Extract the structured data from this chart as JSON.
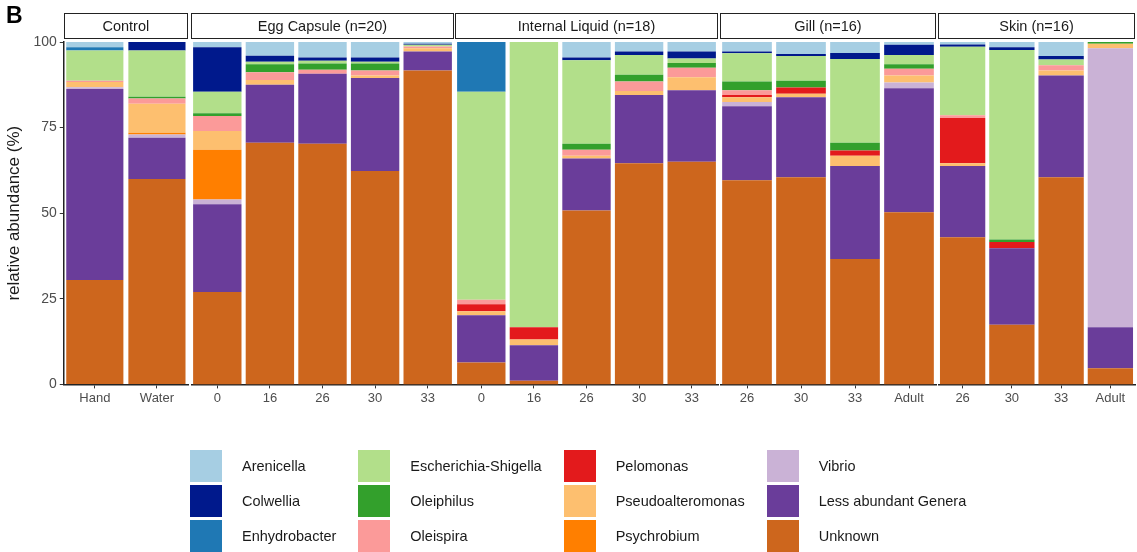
{
  "chart_data": [
    {
      "type": "bar",
      "title": "Control",
      "ylabel": "relative abundance (%)",
      "annotations": [
        "B"
      ],
      "stacked": true,
      "grid": false,
      "legend": "bottom",
      "ylim": [
        0,
        100
      ],
      "yticks": [
        0,
        25,
        50,
        75,
        100
      ],
      "categories": [
        "Hand",
        "Water"
      ],
      "series": [
        {
          "name": "Unknown",
          "color": "#cd661d",
          "values": [
            30.5,
            60.0
          ]
        },
        {
          "name": "Less abundant Genera",
          "color": "#6a3d9a",
          "values": [
            55.8,
            12.0
          ]
        },
        {
          "name": "Vibrio",
          "color": "#cab2d6",
          "values": [
            0.5,
            1.0
          ]
        },
        {
          "name": "Psychrobium",
          "color": "#ff7f00",
          "values": [
            0,
            0.5
          ]
        },
        {
          "name": "Pseudoalteromonas",
          "color": "#fdbf6f",
          "values": [
            1.5,
            8.5
          ]
        },
        {
          "name": "Pelomonas",
          "color": "#e31a1c",
          "values": [
            0,
            0
          ]
        },
        {
          "name": "Oleispira",
          "color": "#fb9a99",
          "values": [
            0.4,
            1.5
          ]
        },
        {
          "name": "Oleiphilus",
          "color": "#33a02c",
          "values": [
            0,
            0.5
          ]
        },
        {
          "name": "Escherichia-Shigella",
          "color": "#b2df8a",
          "values": [
            8.8,
            13.5
          ]
        },
        {
          "name": "Enhydrobacter",
          "color": "#1f78b4",
          "values": [
            1.0,
            0
          ]
        },
        {
          "name": "Colwellia",
          "color": "#00198c",
          "values": [
            0,
            2.5
          ]
        },
        {
          "name": "Arenicella",
          "color": "#a6cee3",
          "values": [
            1.5,
            0
          ]
        }
      ]
    },
    {
      "type": "bar",
      "title": "Egg Capsule (n=20)",
      "stacked": true,
      "grid": false,
      "tick_labels": "x",
      "ylim": [
        0,
        100
      ],
      "yticks": [
        0,
        25,
        50,
        75,
        100
      ],
      "categories": [
        "0",
        "16",
        "26",
        "30",
        "33"
      ],
      "series": [
        {
          "color": "#cd661d",
          "values": [
            27.0,
            70.6,
            70.3,
            62.3,
            91.7
          ]
        },
        {
          "color": "#6a3d9a",
          "values": [
            25.6,
            16.9,
            20.4,
            27.2,
            5.5
          ]
        },
        {
          "color": "#cab2d6",
          "values": [
            1.4,
            0,
            0,
            0,
            0
          ]
        },
        {
          "color": "#ff7f00",
          "values": [
            14.5,
            0,
            0,
            0,
            0
          ]
        },
        {
          "color": "#fdbf6f",
          "values": [
            5.5,
            1.4,
            0,
            0.7,
            1.0
          ]
        },
        {
          "color": "#e31a1c",
          "values": [
            0,
            0,
            0,
            0,
            0
          ]
        },
        {
          "color": "#fb9a99",
          "values": [
            4.4,
            2.3,
            1.2,
            1.5,
            0.5
          ]
        },
        {
          "color": "#33a02c",
          "values": [
            0.8,
            2.3,
            1.8,
            2.0,
            0
          ]
        },
        {
          "color": "#b2df8a",
          "values": [
            6.3,
            0.7,
            0.8,
            0.5,
            0.5
          ]
        },
        {
          "color": "#1f78b4",
          "values": [
            0,
            0,
            0,
            0,
            0
          ]
        },
        {
          "color": "#00198c",
          "values": [
            13.0,
            1.8,
            1.0,
            1.3,
            0.3
          ]
        },
        {
          "color": "#a6cee3",
          "values": [
            1.5,
            4.0,
            4.5,
            4.5,
            0.5
          ]
        }
      ]
    },
    {
      "type": "bar",
      "title": "Internal Liquid (n=18)",
      "stacked": true,
      "grid": false,
      "tick_labels": "x",
      "ylim": [
        0,
        100
      ],
      "yticks": [
        0,
        25,
        50,
        75,
        100
      ],
      "categories": [
        "0",
        "16",
        "26",
        "30",
        "33"
      ],
      "series": [
        {
          "color": "#cd661d",
          "values": [
            6.4,
            1.1,
            50.8,
            64.6,
            65.0
          ]
        },
        {
          "color": "#6a3d9a",
          "values": [
            13.8,
            10.3,
            15.2,
            19.9,
            20.9
          ]
        },
        {
          "color": "#cab2d6",
          "values": [
            0,
            0,
            0,
            0,
            0
          ]
        },
        {
          "color": "#ff7f00",
          "values": [
            0,
            0,
            0,
            0,
            0
          ]
        },
        {
          "color": "#fdbf6f",
          "values": [
            1.2,
            1.7,
            0.8,
            1.2,
            3.8
          ]
        },
        {
          "color": "#e31a1c",
          "values": [
            2.0,
            3.6,
            0,
            0,
            0
          ]
        },
        {
          "color": "#fb9a99",
          "values": [
            1.3,
            0,
            1.7,
            2.8,
            2.8
          ]
        },
        {
          "color": "#33a02c",
          "values": [
            0,
            0,
            1.8,
            1.9,
            1.4
          ]
        },
        {
          "color": "#b2df8a",
          "values": [
            60.8,
            83.3,
            24.4,
            5.8,
            1.3
          ]
        },
        {
          "color": "#1f78b4",
          "values": [
            14.5,
            0,
            0,
            0,
            0
          ]
        },
        {
          "color": "#00198c",
          "values": [
            0,
            0,
            0.8,
            1.0,
            2.0
          ]
        },
        {
          "color": "#a6cee3",
          "values": [
            0,
            0,
            4.5,
            2.8,
            2.8
          ]
        }
      ]
    },
    {
      "type": "bar",
      "title": "Gill (n=16)",
      "stacked": true,
      "grid": false,
      "tick_labels": "x",
      "ylim": [
        0,
        100
      ],
      "yticks": [
        0,
        25,
        50,
        75,
        100
      ],
      "categories": [
        "26",
        "30",
        "33",
        "Adult"
      ],
      "series": [
        {
          "color": "#cd661d",
          "values": [
            59.6,
            60.5,
            36.6,
            50.3
          ]
        },
        {
          "color": "#6a3d9a",
          "values": [
            21.6,
            23.4,
            27.2,
            36.2
          ]
        },
        {
          "color": "#cab2d6",
          "values": [
            1.3,
            0,
            0,
            1.7
          ]
        },
        {
          "color": "#ff7f00",
          "values": [
            0,
            0,
            0,
            0
          ]
        },
        {
          "color": "#fdbf6f",
          "values": [
            1.4,
            1.0,
            3.0,
            2.0
          ]
        },
        {
          "color": "#e31a1c",
          "values": [
            0.6,
            1.8,
            1.5,
            0
          ]
        },
        {
          "color": "#fb9a99",
          "values": [
            1.4,
            0,
            0,
            2.0
          ]
        },
        {
          "color": "#33a02c",
          "values": [
            2.6,
            2.0,
            2.3,
            1.3
          ]
        },
        {
          "color": "#b2df8a",
          "values": [
            8.2,
            7.2,
            24.4,
            2.7
          ]
        },
        {
          "color": "#1f78b4",
          "values": [
            0,
            0,
            0,
            0
          ]
        },
        {
          "color": "#00198c",
          "values": [
            0.5,
            0.6,
            1.8,
            3.0
          ]
        },
        {
          "color": "#a6cee3",
          "values": [
            2.8,
            3.5,
            3.2,
            0.8
          ]
        }
      ]
    },
    {
      "type": "bar",
      "title": "Skin (n=16)",
      "stacked": true,
      "grid": false,
      "tick_labels": "x",
      "ylim": [
        0,
        100
      ],
      "yticks": [
        0,
        25,
        50,
        75,
        100
      ],
      "categories": [
        "26",
        "30",
        "33",
        "Adult"
      ],
      "series": [
        {
          "color": "#cd661d",
          "values": [
            43.0,
            17.4,
            60.5,
            4.7
          ]
        },
        {
          "color": "#6a3d9a",
          "values": [
            20.8,
            22.4,
            29.7,
            12.0
          ]
        },
        {
          "color": "#cab2d6",
          "values": [
            0,
            0,
            0,
            81.5
          ]
        },
        {
          "color": "#ff7f00",
          "values": [
            0,
            0,
            0,
            0
          ]
        },
        {
          "color": "#fdbf6f",
          "values": [
            0.8,
            0,
            1.5,
            1.3
          ]
        },
        {
          "color": "#e31a1c",
          "values": [
            13.2,
            1.8,
            0,
            0
          ]
        },
        {
          "color": "#fb9a99",
          "values": [
            0.8,
            0,
            1.5,
            0
          ]
        },
        {
          "color": "#33a02c",
          "values": [
            0,
            0.7,
            0,
            0.5
          ]
        },
        {
          "color": "#b2df8a",
          "values": [
            20.0,
            55.4,
            1.7,
            0
          ]
        },
        {
          "color": "#1f78b4",
          "values": [
            0,
            0,
            0,
            0
          ]
        },
        {
          "color": "#00198c",
          "values": [
            0.7,
            0.8,
            1.0,
            0
          ]
        },
        {
          "color": "#a6cee3",
          "values": [
            0.7,
            1.5,
            4.1,
            0
          ]
        }
      ]
    }
  ]
}
